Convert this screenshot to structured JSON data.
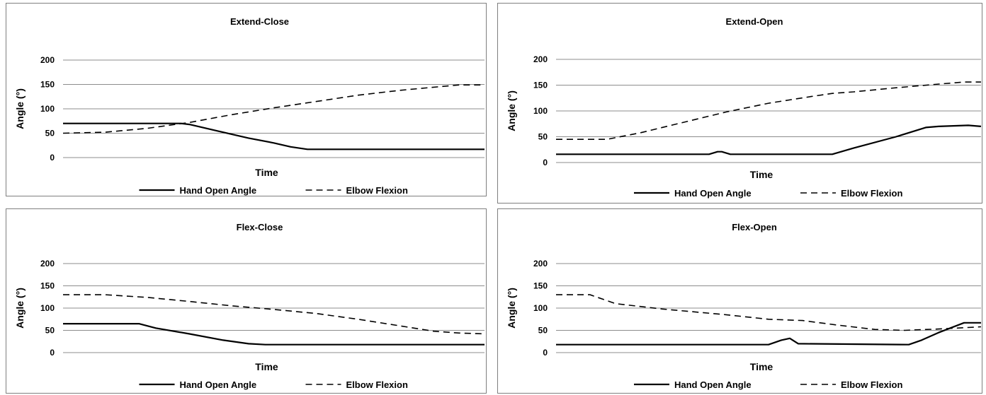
{
  "chart_data": [
    {
      "type": "line",
      "title": "Extend-Close",
      "xlabel": "Time",
      "ylabel": "Angle  (°)",
      "ylim": [
        0,
        200
      ],
      "yticks": [
        "0",
        "50",
        "100",
        "150",
        "200"
      ],
      "xlim": [
        0,
        100
      ],
      "grid": true,
      "legend_position": "bottom",
      "series": [
        {
          "name": "Hand Open Angle",
          "style": "solid",
          "x": [
            0,
            28,
            30,
            36,
            44,
            50,
            54,
            58,
            100
          ],
          "y": [
            70,
            70,
            68,
            56,
            40,
            30,
            22,
            17,
            17
          ]
        },
        {
          "name": "Elbow Flexion",
          "style": "dashed",
          "x": [
            0,
            10,
            20,
            30,
            40,
            50,
            60,
            70,
            80,
            90,
            94,
            100
          ],
          "y": [
            50,
            52,
            60,
            72,
            88,
            102,
            115,
            128,
            138,
            146,
            149,
            149
          ]
        }
      ]
    },
    {
      "type": "line",
      "title": "Extend-Open",
      "xlabel": "Time",
      "ylabel": "Angle  (°)",
      "ylim": [
        0,
        200
      ],
      "yticks": [
        "0",
        "50",
        "100",
        "150",
        "200"
      ],
      "xlim": [
        0,
        100
      ],
      "grid": true,
      "legend_position": "bottom",
      "series": [
        {
          "name": "Hand Open Angle",
          "style": "solid",
          "x": [
            0,
            36,
            38,
            39,
            41,
            65,
            70,
            80,
            87,
            90,
            97,
            100
          ],
          "y": [
            16,
            16,
            21,
            21,
            16,
            16,
            28,
            50,
            68,
            70,
            72,
            70
          ]
        },
        {
          "name": "Elbow Flexion",
          "style": "dashed",
          "x": [
            0,
            12,
            20,
            30,
            40,
            50,
            60,
            65,
            70,
            80,
            90,
            96,
            100
          ],
          "y": [
            45,
            45,
            58,
            78,
            98,
            115,
            128,
            134,
            137,
            145,
            152,
            156,
            156
          ]
        }
      ]
    },
    {
      "type": "line",
      "title": "Flex-Close",
      "xlabel": "Time",
      "ylabel": "Angle  (°)",
      "ylim": [
        0,
        200
      ],
      "yticks": [
        "0",
        "50",
        "100",
        "150",
        "200"
      ],
      "xlim": [
        0,
        100
      ],
      "grid": true,
      "legend_position": "bottom",
      "series": [
        {
          "name": "Hand Open Angle",
          "style": "solid",
          "x": [
            0,
            18,
            22,
            30,
            38,
            44,
            48,
            100
          ],
          "y": [
            65,
            65,
            55,
            42,
            28,
            20,
            18,
            18
          ]
        },
        {
          "name": "Elbow Flexion",
          "style": "dashed",
          "x": [
            0,
            10,
            20,
            30,
            40,
            50,
            60,
            70,
            80,
            88,
            94,
            100
          ],
          "y": [
            130,
            130,
            124,
            115,
            105,
            97,
            88,
            75,
            60,
            48,
            44,
            42
          ]
        }
      ]
    },
    {
      "type": "line",
      "title": "Flex-Open",
      "xlabel": "Time",
      "ylabel": "Angle  (°)",
      "ylim": [
        0,
        200
      ],
      "yticks": [
        "0",
        "50",
        "100",
        "150",
        "200"
      ],
      "xlim": [
        0,
        100
      ],
      "grid": true,
      "legend_position": "bottom",
      "series": [
        {
          "name": "Hand Open Angle",
          "style": "solid",
          "x": [
            0,
            50,
            53,
            55,
            57,
            83,
            86,
            90,
            96,
            100
          ],
          "y": [
            18,
            18,
            28,
            32,
            20,
            18,
            28,
            45,
            67,
            67
          ]
        },
        {
          "name": "Elbow Flexion",
          "style": "dashed",
          "x": [
            0,
            8,
            14,
            25,
            40,
            50,
            58,
            66,
            75,
            82,
            90,
            100
          ],
          "y": [
            130,
            130,
            110,
            98,
            85,
            75,
            72,
            62,
            52,
            50,
            53,
            58
          ]
        }
      ]
    }
  ]
}
